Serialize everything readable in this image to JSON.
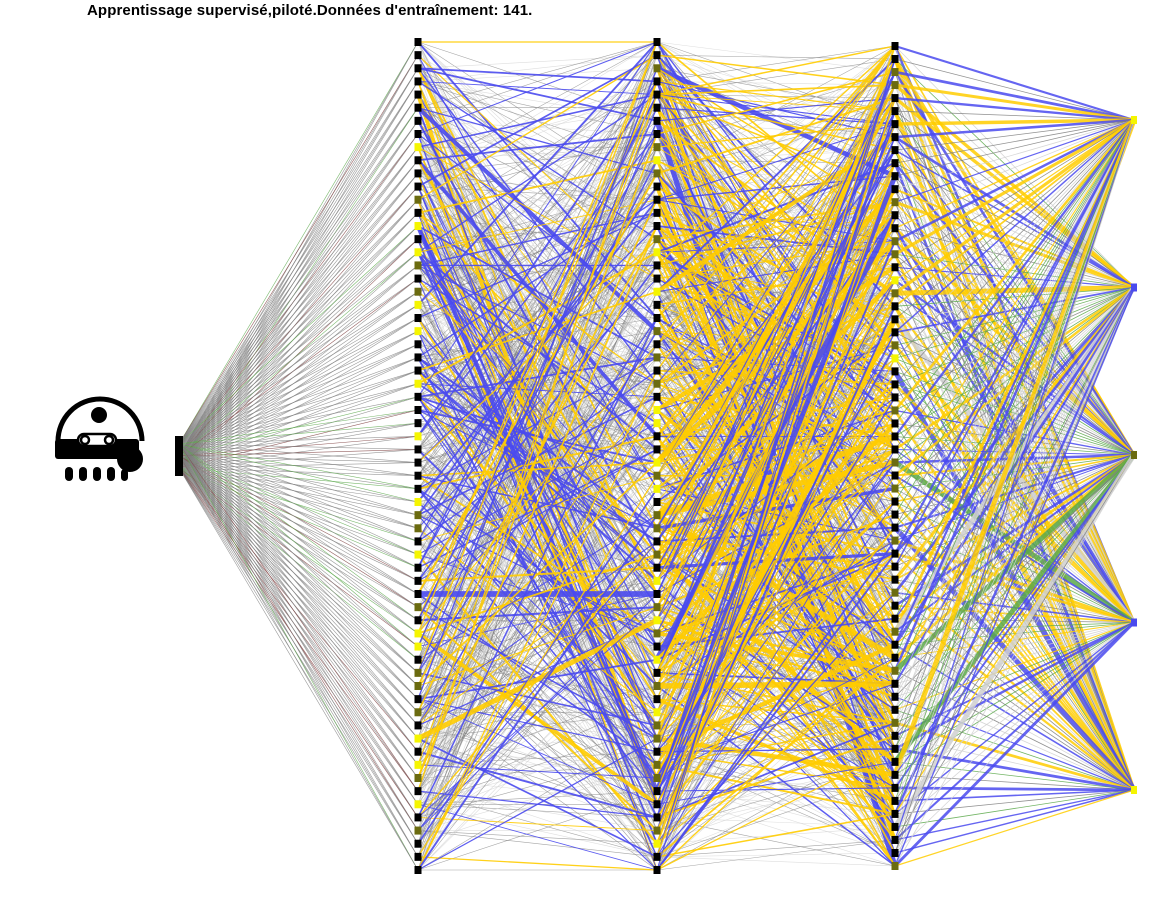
{
  "caption": "Apprentissage supervisé,piloté.Données d'entraînement: 141.",
  "robot_icon": "robot-face-icon",
  "network": {
    "layer_sizes": [
      1,
      64,
      64,
      64,
      5
    ],
    "colors": {
      "positive_strong": "#ffcc00",
      "negative_strong": "#4a4aee",
      "weak": "#7f7f7f",
      "faint": "#d0d0d0",
      "green": "#5aa84a",
      "brown": "#7a3a3a",
      "node_dark": "#000000",
      "node_yellow": "#f5f500",
      "node_olive": "#6b6b10"
    }
  }
}
